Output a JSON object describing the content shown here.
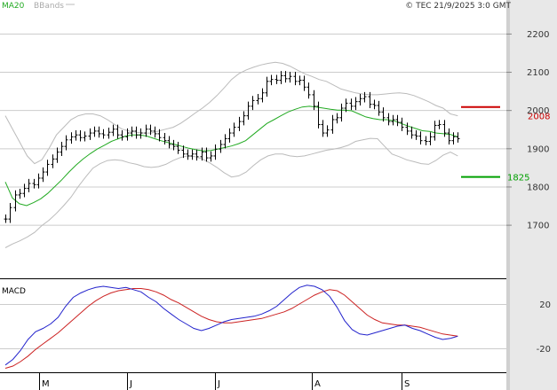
{
  "header": {
    "legend_ma": "MA20",
    "legend_bb": "BBands",
    "copyright": "© TEC 21/9/2025 3:0 GMT"
  },
  "colors": {
    "price_bars": "#000000",
    "ma20": "#22aa22",
    "bbands": "#bbbbbb",
    "grid": "#cccccc",
    "resistance": "#cc0000",
    "support": "#00a000",
    "macd_line": "#2222cc",
    "signal_line": "#cc2222",
    "sidebar_bg": "#e8e8e8"
  },
  "chart_data": [
    {
      "type": "ohlc",
      "title": "",
      "ylim": [
        1560,
        2260
      ],
      "yticks": [
        1700,
        1800,
        1900,
        2000,
        2100,
        2200
      ],
      "x_labels": [
        {
          "label": "M",
          "index": 8
        },
        {
          "label": "J",
          "index": 28
        },
        {
          "label": "J",
          "index": 48
        },
        {
          "label": "A",
          "index": 70
        },
        {
          "label": "S",
          "index": 90
        }
      ],
      "price": [
        1715,
        1745,
        1778,
        1782,
        1795,
        1808,
        1805,
        1822,
        1838,
        1858,
        1872,
        1890,
        1905,
        1922,
        1930,
        1935,
        1928,
        1932,
        1940,
        1945,
        1938,
        1935,
        1942,
        1950,
        1935,
        1930,
        1940,
        1945,
        1935,
        1940,
        1950,
        1945,
        1938,
        1928,
        1920,
        1910,
        1905,
        1895,
        1885,
        1880,
        1885,
        1878,
        1890,
        1875,
        1880,
        1898,
        1910,
        1925,
        1940,
        1955,
        1970,
        1985,
        2010,
        2025,
        2030,
        2045,
        2075,
        2080,
        2078,
        2090,
        2082,
        2088,
        2075,
        2078,
        2060,
        2040,
        2010,
        1962,
        1940,
        1948,
        1975,
        1980,
        2005,
        2018,
        2010,
        2022,
        2030,
        2035,
        2015,
        2012,
        1995,
        1980,
        1970,
        1975,
        1968,
        1955,
        1945,
        1935,
        1932,
        1920,
        1918,
        1930,
        1960,
        1962,
        1940,
        1920,
        1930,
        1925
      ],
      "ma20": [
        1812,
        1770,
        1755,
        1750,
        1758,
        1768,
        1782,
        1800,
        1818,
        1838,
        1856,
        1872,
        1886,
        1898,
        1908,
        1918,
        1925,
        1932,
        1935,
        1935,
        1932,
        1926,
        1920,
        1915,
        1910,
        1905,
        1900,
        1896,
        1893,
        1894,
        1898,
        1902,
        1906,
        1912,
        1920,
        1935,
        1950,
        1965,
        1975,
        1985,
        1995,
        2002,
        2008,
        2010,
        2008,
        2005,
        2002,
        2000,
        2000,
        1998,
        1990,
        1982,
        1978,
        1975,
        1975,
        1972,
        1965,
        1958,
        1952,
        1946,
        1944,
        1940,
        1938,
        1936,
        1930
      ],
      "ma20_start_index": 0,
      "bb_upper": [
        1985,
        1950,
        1915,
        1880,
        1860,
        1870,
        1900,
        1935,
        1955,
        1975,
        1985,
        1990,
        1990,
        1985,
        1975,
        1962,
        1950,
        1945,
        1942,
        1940,
        1940,
        1945,
        1950,
        1955,
        1965,
        1978,
        1992,
        2005,
        2020,
        2038,
        2058,
        2080,
        2095,
        2105,
        2112,
        2118,
        2122,
        2125,
        2122,
        2115,
        2105,
        2095,
        2088,
        2080,
        2075,
        2065,
        2055,
        2050,
        2045,
        2042,
        2040,
        2040,
        2042,
        2044,
        2045,
        2043,
        2038,
        2030,
        2022,
        2012,
        2005,
        1990,
        1985
      ],
      "bb_lower": [
        1640,
        1650,
        1658,
        1668,
        1680,
        1698,
        1712,
        1730,
        1750,
        1772,
        1800,
        1825,
        1848,
        1860,
        1868,
        1870,
        1868,
        1862,
        1858,
        1852,
        1850,
        1852,
        1858,
        1868,
        1876,
        1880,
        1878,
        1872,
        1862,
        1850,
        1836,
        1825,
        1828,
        1838,
        1855,
        1870,
        1880,
        1885,
        1885,
        1880,
        1878,
        1880,
        1885,
        1890,
        1895,
        1898,
        1902,
        1908,
        1918,
        1922,
        1926,
        1925,
        1905,
        1885,
        1878,
        1870,
        1865,
        1860,
        1858,
        1868,
        1882,
        1890,
        1880
      ],
      "resistance": {
        "value": 2008,
        "label": "2008"
      },
      "support": {
        "value": 1825,
        "label": "1825"
      }
    },
    {
      "type": "line",
      "title": "MACD",
      "ylim": [
        -40,
        40
      ],
      "yticks": [
        {
          "v": 20,
          "label": "20"
        },
        {
          "v": -20,
          "label": "-20"
        }
      ],
      "macd": [
        -35,
        -30,
        -22,
        -12,
        -5,
        -2,
        2,
        8,
        18,
        26,
        30,
        33,
        35,
        36,
        35,
        34,
        35,
        33,
        31,
        26,
        22,
        16,
        11,
        6,
        2,
        -2,
        -4,
        -2,
        1,
        4,
        6,
        7,
        8,
        9,
        11,
        14,
        18,
        24,
        30,
        35,
        37,
        36,
        33,
        27,
        17,
        5,
        -3,
        -7,
        -8,
        -6,
        -4,
        -2,
        0,
        1,
        -2,
        -4,
        -7,
        -10,
        -12,
        -11,
        -9
      ],
      "signal": [
        -38,
        -36,
        -32,
        -27,
        -21,
        -16,
        -11,
        -6,
        0,
        6,
        12,
        18,
        23,
        27,
        30,
        32,
        33,
        34,
        34,
        33,
        31,
        28,
        24,
        21,
        17,
        13,
        9,
        6,
        4,
        3,
        3,
        4,
        5,
        6,
        7,
        9,
        11,
        13,
        16,
        20,
        24,
        28,
        31,
        33,
        32,
        28,
        22,
        16,
        10,
        6,
        3,
        2,
        1,
        1,
        0,
        -1,
        -3,
        -5,
        -7,
        -8,
        -9
      ]
    }
  ]
}
